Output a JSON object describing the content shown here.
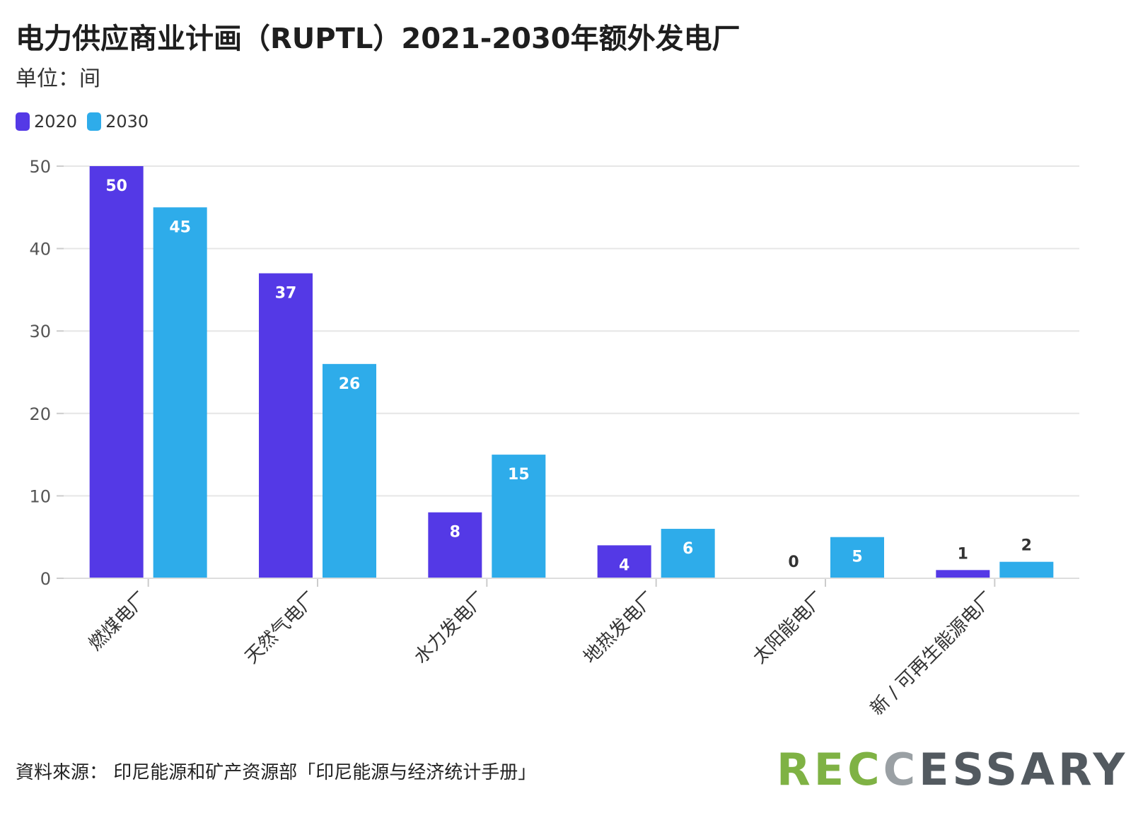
{
  "title": "电力供应商业计画（RUPTL）2021-2030年额外发电厂",
  "subtitle": "单位：间",
  "source": "資料來源： 印尼能源和矿产资源部「印尼能源与经济统计手册」",
  "logo": {
    "part1": "REC",
    "part2": "C",
    "part3": "ESSARY"
  },
  "colors": {
    "s2020": "#5439e6",
    "s2030": "#2eacea",
    "grid": "#e6e6e6",
    "axis": "#555555"
  },
  "chart_data": {
    "type": "bar",
    "categories": [
      "燃煤电厂",
      "天然气电厂",
      "水力发电厂",
      "地热发电厂",
      "太阳能电厂",
      "新 / 可再生能源电厂"
    ],
    "series": [
      {
        "name": "2020",
        "values": [
          50,
          37,
          8,
          4,
          0,
          1
        ]
      },
      {
        "name": "2030",
        "values": [
          45,
          26,
          15,
          6,
          5,
          2
        ]
      }
    ],
    "y_ticks": [
      0,
      10,
      20,
      30,
      40,
      50
    ],
    "ylim": [
      0,
      50
    ],
    "grid": true,
    "legend_position": "top-left"
  }
}
